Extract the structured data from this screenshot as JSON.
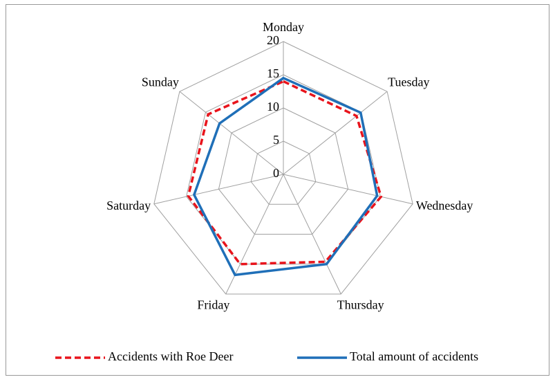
{
  "chart_data": {
    "type": "radar",
    "categories": [
      "Monday",
      "Tuesday",
      "Wednesday",
      "Thursday",
      "Friday",
      "Saturday",
      "Sunday"
    ],
    "series": [
      {
        "name": "Accidents with Roe Deer",
        "color": "#e8141c",
        "dash": true,
        "values": [
          14,
          14.1,
          15.1,
          14.6,
          15,
          14.7,
          14.5
        ]
      },
      {
        "name": "Total amount of accidents",
        "color": "#1f6fb8",
        "dash": false,
        "values": [
          14.5,
          14.9,
          14.5,
          15,
          16.8,
          13.8,
          12.3
        ]
      }
    ],
    "rlim": [
      0,
      20
    ],
    "rticks": [
      0,
      5,
      10,
      15,
      20
    ],
    "grid": true,
    "legend": "bottom"
  }
}
